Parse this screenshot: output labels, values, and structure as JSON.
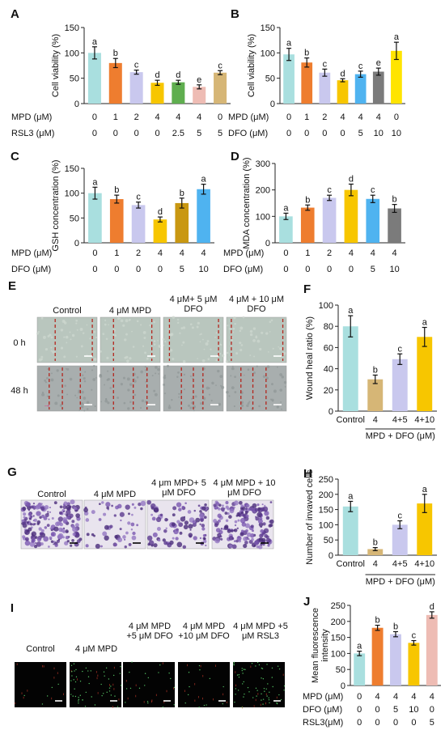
{
  "colors": {
    "cyan": "#a9dfdf",
    "orange": "#ee7d2f",
    "lavender": "#c9c8ee",
    "yellow": "#f7c600",
    "green": "#5fae4f",
    "pink": "#eebcb4",
    "khaki": "#d6b676",
    "blue": "#4fb3f0",
    "gray": "#7b7b7b",
    "gold": "#c99812",
    "ylw2": "#ffe400"
  },
  "chart_data": [
    {
      "panel": "A",
      "type": "bar",
      "ylabel": "Cell viability (%)",
      "ylim": [
        0,
        150
      ],
      "yticks": [
        0,
        50,
        100,
        150
      ],
      "values": [
        100,
        80,
        62,
        41,
        42,
        33,
        61
      ],
      "errors": [
        12,
        9,
        4,
        5,
        4,
        4,
        4
      ],
      "letters": [
        "a",
        "b",
        "c",
        "d",
        "d",
        "e",
        "c"
      ],
      "colors": [
        "cyan",
        "orange",
        "lavender",
        "yellow",
        "green",
        "pink",
        "khaki"
      ],
      "rows": [
        {
          "label": "MPD (μM)",
          "values": [
            "0",
            "1",
            "2",
            "4",
            "4",
            "4",
            "0"
          ]
        },
        {
          "label": "RSL3 (μM)",
          "values": [
            "0",
            "0",
            "0",
            "0",
            "2.5",
            "5",
            "5"
          ]
        }
      ]
    },
    {
      "panel": "B",
      "type": "bar",
      "ylabel": "Cell viability (%)",
      "ylim": [
        0,
        150
      ],
      "yticks": [
        0,
        50,
        100,
        150
      ],
      "values": [
        97,
        81,
        61,
        46,
        58,
        63,
        104
      ],
      "errors": [
        12,
        9,
        7,
        3,
        6,
        7,
        17
      ],
      "letters": [
        "a",
        "b",
        "c",
        "d",
        "c",
        "e",
        "a"
      ],
      "colors": [
        "cyan",
        "orange",
        "lavender",
        "yellow",
        "blue",
        "gray",
        "ylw2"
      ],
      "rows": [
        {
          "label": "MPD (μM)",
          "values": [
            "0",
            "1",
            "2",
            "4",
            "4",
            "4",
            "0"
          ]
        },
        {
          "label": "DFO (μM)",
          "values": [
            "0",
            "0",
            "0",
            "0",
            "5",
            "10",
            "10"
          ]
        }
      ]
    },
    {
      "panel": "C",
      "type": "bar",
      "ylabel": "GSH concentration (%)",
      "ylim": [
        0,
        150
      ],
      "yticks": [
        0,
        50,
        100,
        150
      ],
      "values": [
        100,
        88,
        76,
        47,
        80,
        108
      ],
      "errors": [
        12,
        8,
        6,
        5,
        10,
        10
      ],
      "letters": [
        "a",
        "b",
        "c",
        "d",
        "b",
        "a"
      ],
      "colors": [
        "cyan",
        "orange",
        "lavender",
        "yellow",
        "gold",
        "blue"
      ],
      "rows": [
        {
          "label": "MPD (μM)",
          "values": [
            "0",
            "1",
            "2",
            "4",
            "4",
            "4"
          ]
        },
        {
          "label": "DFO (μM)",
          "values": [
            "0",
            "0",
            "0",
            "0",
            "5",
            "10"
          ]
        }
      ]
    },
    {
      "panel": "D",
      "type": "bar",
      "ylabel": "MDA concentration (%)",
      "ylim": [
        0,
        300
      ],
      "yticks": [
        0,
        100,
        200,
        300
      ],
      "values": [
        100,
        133,
        170,
        200,
        166,
        130
      ],
      "errors": [
        12,
        10,
        10,
        22,
        14,
        15
      ],
      "letters": [
        "a",
        "b",
        "c",
        "d",
        "c",
        "b"
      ],
      "colors": [
        "cyan",
        "orange",
        "lavender",
        "yellow",
        "blue",
        "gray"
      ],
      "rows": [
        {
          "label": "MPD (μM)",
          "values": [
            "0",
            "1",
            "2",
            "4",
            "4",
            "4"
          ]
        },
        {
          "label": "DFO (μM)",
          "values": [
            "0",
            "0",
            "0",
            "0",
            "5",
            "10"
          ]
        }
      ]
    },
    {
      "panel": "F",
      "type": "bar",
      "ylabel": "Wound heal ratio (%)",
      "ylim": [
        0,
        100
      ],
      "yticks": [
        0,
        20,
        40,
        60,
        80,
        100
      ],
      "values": [
        80,
        30,
        49,
        70
      ],
      "errors": [
        10,
        4,
        5,
        9
      ],
      "letters": [
        "a",
        "b",
        "c",
        "a"
      ],
      "colors": [
        "cyan",
        "khaki",
        "lavender",
        "yellow"
      ],
      "categories": [
        "Control",
        "4",
        "4+5",
        "4+10"
      ],
      "xlabel": "MPD + DFO (μM)"
    },
    {
      "panel": "H",
      "type": "bar",
      "ylabel": "Number of invaved cells",
      "ylim": [
        0,
        250
      ],
      "yticks": [
        0,
        50,
        100,
        150,
        200,
        250
      ],
      "values": [
        160,
        20,
        100,
        170
      ],
      "errors": [
        17,
        5,
        13,
        30
      ],
      "letters": [
        "a",
        "b",
        "c",
        "a"
      ],
      "colors": [
        "cyan",
        "khaki",
        "lavender",
        "yellow"
      ],
      "categories": [
        "Control",
        "4",
        "4+5",
        "4+10"
      ],
      "xlabel": "MPD + DFO (μM)"
    },
    {
      "panel": "J",
      "type": "bar",
      "ylabel": "Mean fluorescence intensity",
      "ylim": [
        0,
        250
      ],
      "yticks": [
        0,
        50,
        100,
        150,
        200,
        250
      ],
      "values": [
        100,
        180,
        160,
        133,
        220
      ],
      "errors": [
        7,
        8,
        8,
        7,
        10
      ],
      "letters": [
        "a",
        "b",
        "b",
        "c",
        "d"
      ],
      "colors": [
        "cyan",
        "orange",
        "lavender",
        "yellow",
        "pink"
      ],
      "rows": [
        {
          "label": "MPD (μM)",
          "values": [
            "0",
            "4",
            "4",
            "4",
            "4"
          ]
        },
        {
          "label": "DFO (μM)",
          "values": [
            "0",
            "0",
            "5",
            "10",
            "0"
          ]
        },
        {
          "label": "RSL3(μM)",
          "values": [
            "0",
            "0",
            "0",
            "0",
            "5"
          ]
        }
      ]
    }
  ],
  "panel_e": {
    "letter": "E",
    "columns": [
      "Control",
      "4 μM MPD",
      "4 μM+ 5 μM DFO",
      "4 μM + 10 μM DFO"
    ],
    "rows": [
      "0 h",
      "48 h"
    ]
  },
  "panel_g": {
    "letter": "G",
    "columns": [
      "Control",
      "4 μM MPD",
      "4 μm MPD+ 5 μM DFO",
      "4 μM MPD + 10 μM DFO"
    ]
  },
  "panel_i": {
    "letter": "I",
    "columns": [
      "Control",
      "4 μM MPD",
      "4 μM MPD +5 μM DFO",
      "4 μM MPD +10 μM DFO",
      "4 μM MPD +5 μM RSL3"
    ]
  }
}
